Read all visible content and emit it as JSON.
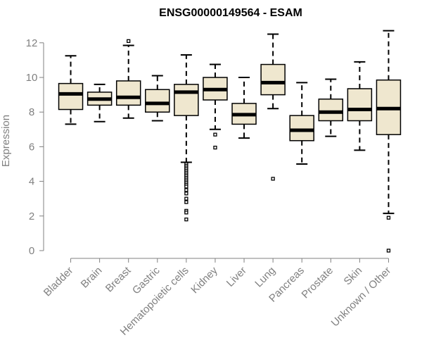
{
  "chart_data": {
    "type": "boxplot",
    "title": "ENSG00000149564 - ESAM",
    "xlabel": "",
    "ylabel": "Expression",
    "ylim": [
      0,
      12.7
    ],
    "yticks": [
      0,
      2,
      4,
      6,
      8,
      10,
      12
    ],
    "grid": false,
    "legend": "none",
    "colors": {
      "box_fill": "#efe7cf",
      "stroke": "#000000",
      "axis": "#808080",
      "text": "#808080"
    },
    "categories": [
      "Bladder",
      "Brain",
      "Breast",
      "Gastric",
      "Hematopoietic cells",
      "Kidney",
      "Liver",
      "Lung",
      "Pancreas",
      "Prostate",
      "Skin",
      "Unknown / Other"
    ],
    "boxes": [
      {
        "name": "Bladder",
        "min": 7.3,
        "q1": 8.15,
        "median": 9.05,
        "q3": 9.65,
        "max": 11.25,
        "outliers": []
      },
      {
        "name": "Brain",
        "min": 7.45,
        "q1": 8.4,
        "median": 8.75,
        "q3": 9.15,
        "max": 9.6,
        "outliers": []
      },
      {
        "name": "Breast",
        "min": 7.65,
        "q1": 8.4,
        "median": 8.85,
        "q3": 9.8,
        "max": 11.85,
        "outliers": [
          12.1
        ]
      },
      {
        "name": "Gastric",
        "min": 7.5,
        "q1": 8.0,
        "median": 8.5,
        "q3": 9.3,
        "max": 10.1,
        "outliers": []
      },
      {
        "name": "Hematopoietic cells",
        "min": 5.1,
        "q1": 7.8,
        "median": 9.15,
        "q3": 9.6,
        "max": 11.3,
        "outliers": [
          5.0,
          4.9,
          4.8,
          4.7,
          4.6,
          4.5,
          4.4,
          4.3,
          4.2,
          4.1,
          4.0,
          3.9,
          3.8,
          3.7,
          3.5,
          3.3,
          3.0,
          2.8,
          2.3,
          2.2,
          1.8
        ]
      },
      {
        "name": "Kidney",
        "min": 7.0,
        "q1": 8.7,
        "median": 9.3,
        "q3": 10.0,
        "max": 10.75,
        "outliers": [
          6.7,
          5.95
        ]
      },
      {
        "name": "Liver",
        "min": 6.5,
        "q1": 7.3,
        "median": 7.85,
        "q3": 8.5,
        "max": 10.0,
        "outliers": []
      },
      {
        "name": "Lung",
        "min": 8.2,
        "q1": 9.0,
        "median": 9.7,
        "q3": 10.75,
        "max": 12.5,
        "outliers": [
          4.15
        ]
      },
      {
        "name": "Pancreas",
        "min": 5.0,
        "q1": 6.35,
        "median": 6.95,
        "q3": 7.8,
        "max": 9.7,
        "outliers": []
      },
      {
        "name": "Prostate",
        "min": 6.6,
        "q1": 7.5,
        "median": 8.0,
        "q3": 8.75,
        "max": 9.9,
        "outliers": []
      },
      {
        "name": "Skin",
        "min": 5.8,
        "q1": 7.5,
        "median": 8.15,
        "q3": 9.35,
        "max": 10.9,
        "outliers": []
      },
      {
        "name": "Unknown / Other",
        "min": 2.15,
        "q1": 6.7,
        "median": 8.2,
        "q3": 9.85,
        "max": 12.7,
        "outliers": [
          1.9,
          0.0
        ]
      }
    ]
  }
}
